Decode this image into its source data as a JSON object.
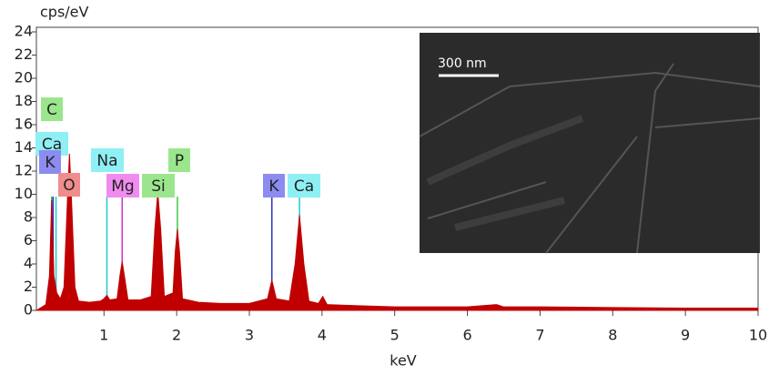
{
  "chart_data": {
    "type": "area",
    "title": "cps/eV",
    "x_label": "keV",
    "color": "#c00000",
    "x": [
      0.07,
      0.15,
      0.2,
      0.25,
      0.28,
      0.31,
      0.35,
      0.4,
      0.45,
      0.5,
      0.525,
      0.55,
      0.6,
      0.65,
      0.8,
      0.95,
      1.0,
      1.04,
      1.08,
      1.18,
      1.22,
      1.25,
      1.28,
      1.33,
      1.5,
      1.65,
      1.7,
      1.74,
      1.78,
      1.83,
      1.95,
      1.98,
      2.01,
      2.04,
      2.08,
      2.3,
      2.6,
      3.0,
      3.25,
      3.31,
      3.37,
      3.55,
      3.63,
      3.69,
      3.75,
      3.82,
      3.95,
      4.01,
      4.07,
      4.5,
      5.0,
      6.0,
      6.4,
      6.5,
      7.0,
      8.0,
      9.0,
      10
    ],
    "values": [
      0,
      0.3,
      0.5,
      3,
      9.5,
      3,
      1.5,
      1,
      2,
      10,
      13.5,
      10,
      2,
      0.8,
      0.7,
      0.8,
      1,
      1.3,
      0.9,
      1,
      3,
      4.2,
      3,
      0.9,
      0.9,
      1.2,
      7,
      10.2,
      7,
      1.2,
      1.5,
      5,
      7,
      5,
      1,
      0.7,
      0.6,
      0.6,
      1,
      2.6,
      1,
      0.8,
      4,
      8.2,
      4,
      0.8,
      0.6,
      1.2,
      0.5,
      0.4,
      0.3,
      0.3,
      0.5,
      0.3,
      0.3,
      0.25,
      0.2,
      0.2
    ],
    "xlim": [
      0.07,
      10
    ],
    "ylim": [
      0,
      24
    ],
    "xticks": [
      1,
      2,
      3,
      4,
      5,
      6,
      7,
      8,
      9,
      10
    ],
    "yticks": [
      0,
      2,
      4,
      6,
      8,
      10,
      12,
      14,
      16,
      18,
      20,
      22,
      24
    ],
    "elements": [
      {
        "label": "C",
        "energy": 0.28,
        "color": "#9be68c"
      },
      {
        "label": "Ca",
        "energy": 0.34,
        "color": "#8ef0f5"
      },
      {
        "label": "K",
        "energy": 0.3,
        "color": "#8c8cf0"
      },
      {
        "label": "O",
        "energy": 0.525,
        "color": "#f08c8c"
      },
      {
        "label": "Na",
        "energy": 1.04,
        "color": "#8ef0f5"
      },
      {
        "label": "Mg",
        "energy": 1.25,
        "color": "#f08cf0"
      },
      {
        "label": "Si",
        "energy": 1.74,
        "color": "#9be68c"
      },
      {
        "label": "P",
        "energy": 2.01,
        "color": "#9be68c"
      },
      {
        "label": "K",
        "energy": 3.31,
        "color": "#8c8cf0"
      },
      {
        "label": "Ca",
        "energy": 3.69,
        "color": "#8ef0f5"
      }
    ],
    "inset": {
      "scale_bar": "300 nm"
    }
  }
}
